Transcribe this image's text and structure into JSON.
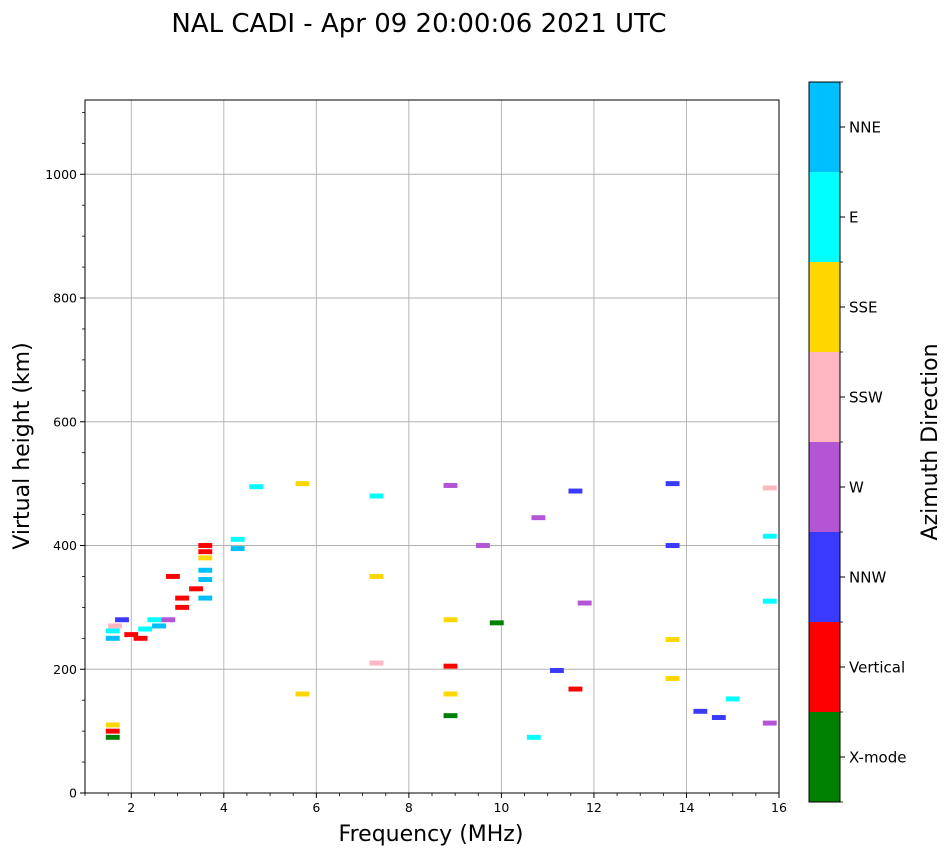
{
  "chart_data": {
    "type": "scatter",
    "title": "NAL CADI - Apr 09 20:00:06 2021 UTC",
    "xlabel": "Frequency (MHz)",
    "ylabel": "Virtual height (km)",
    "xlim": [
      1,
      16
    ],
    "ylim": [
      0,
      1120
    ],
    "xticks": [
      2,
      4,
      6,
      8,
      10,
      12,
      14,
      16
    ],
    "yticks": [
      0,
      200,
      400,
      600,
      800,
      1000
    ],
    "grid": true,
    "colorbar": {
      "title": "Azimuth Direction",
      "categories": [
        {
          "name": "X-mode",
          "color": "#008000"
        },
        {
          "name": "Vertical",
          "color": "#ff0000"
        },
        {
          "name": "NNW",
          "color": "#3a3aff"
        },
        {
          "name": "W",
          "color": "#b455d6"
        },
        {
          "name": "SSW",
          "color": "#ffb6c1"
        },
        {
          "name": "SSE",
          "color": "#ffd700"
        },
        {
          "name": "E",
          "color": "#00ffff"
        },
        {
          "name": "NNE",
          "color": "#00bfff"
        }
      ]
    },
    "echoes": [
      {
        "f": 1.6,
        "h": 90,
        "dir": "X-mode"
      },
      {
        "f": 1.6,
        "h": 100,
        "dir": "Vertical"
      },
      {
        "f": 1.6,
        "h": 110,
        "dir": "SSE"
      },
      {
        "f": 1.6,
        "h": 250,
        "dir": "NNE"
      },
      {
        "f": 1.6,
        "h": 262,
        "dir": "E"
      },
      {
        "f": 1.65,
        "h": 270,
        "dir": "SSW"
      },
      {
        "f": 1.8,
        "h": 280,
        "dir": "NNW"
      },
      {
        "f": 2.0,
        "h": 256,
        "dir": "Vertical"
      },
      {
        "f": 2.2,
        "h": 250,
        "dir": "Vertical"
      },
      {
        "f": 2.3,
        "h": 265,
        "dir": "E"
      },
      {
        "f": 2.5,
        "h": 280,
        "dir": "E"
      },
      {
        "f": 2.6,
        "h": 270,
        "dir": "NNE"
      },
      {
        "f": 2.8,
        "h": 280,
        "dir": "W"
      },
      {
        "f": 3.1,
        "h": 300,
        "dir": "Vertical"
      },
      {
        "f": 3.1,
        "h": 315,
        "dir": "Vertical"
      },
      {
        "f": 2.9,
        "h": 350,
        "dir": "Vertical"
      },
      {
        "f": 3.4,
        "h": 330,
        "dir": "Vertical"
      },
      {
        "f": 3.6,
        "h": 315,
        "dir": "NNE"
      },
      {
        "f": 3.6,
        "h": 345,
        "dir": "NNE"
      },
      {
        "f": 3.6,
        "h": 360,
        "dir": "NNE"
      },
      {
        "f": 3.6,
        "h": 380,
        "dir": "SSE"
      },
      {
        "f": 3.6,
        "h": 390,
        "dir": "Vertical"
      },
      {
        "f": 3.6,
        "h": 400,
        "dir": "Vertical"
      },
      {
        "f": 4.3,
        "h": 395,
        "dir": "NNE"
      },
      {
        "f": 4.3,
        "h": 410,
        "dir": "E"
      },
      {
        "f": 4.7,
        "h": 495,
        "dir": "E"
      },
      {
        "f": 5.7,
        "h": 500,
        "dir": "SSE"
      },
      {
        "f": 5.7,
        "h": 160,
        "dir": "SSE"
      },
      {
        "f": 7.3,
        "h": 480,
        "dir": "E"
      },
      {
        "f": 7.3,
        "h": 350,
        "dir": "SSE"
      },
      {
        "f": 7.3,
        "h": 210,
        "dir": "SSW"
      },
      {
        "f": 8.9,
        "h": 497,
        "dir": "W"
      },
      {
        "f": 8.9,
        "h": 280,
        "dir": "SSE"
      },
      {
        "f": 8.9,
        "h": 205,
        "dir": "Vertical"
      },
      {
        "f": 8.9,
        "h": 160,
        "dir": "SSE"
      },
      {
        "f": 8.9,
        "h": 125,
        "dir": "X-mode"
      },
      {
        "f": 9.6,
        "h": 400,
        "dir": "W"
      },
      {
        "f": 9.9,
        "h": 275,
        "dir": "X-mode"
      },
      {
        "f": 10.8,
        "h": 445,
        "dir": "W"
      },
      {
        "f": 10.7,
        "h": 90,
        "dir": "E"
      },
      {
        "f": 11.2,
        "h": 198,
        "dir": "NNW"
      },
      {
        "f": 11.6,
        "h": 488,
        "dir": "NNW"
      },
      {
        "f": 11.6,
        "h": 168,
        "dir": "Vertical"
      },
      {
        "f": 11.8,
        "h": 307,
        "dir": "W"
      },
      {
        "f": 13.7,
        "h": 500,
        "dir": "NNW"
      },
      {
        "f": 13.7,
        "h": 400,
        "dir": "NNW"
      },
      {
        "f": 13.7,
        "h": 248,
        "dir": "SSE"
      },
      {
        "f": 13.7,
        "h": 185,
        "dir": "SSE"
      },
      {
        "f": 14.3,
        "h": 132,
        "dir": "NNW"
      },
      {
        "f": 14.7,
        "h": 122,
        "dir": "NNW"
      },
      {
        "f": 15.0,
        "h": 152,
        "dir": "E"
      },
      {
        "f": 15.8,
        "h": 493,
        "dir": "SSW"
      },
      {
        "f": 15.8,
        "h": 415,
        "dir": "E"
      },
      {
        "f": 15.8,
        "h": 310,
        "dir": "E"
      },
      {
        "f": 15.8,
        "h": 113,
        "dir": "W"
      }
    ]
  }
}
